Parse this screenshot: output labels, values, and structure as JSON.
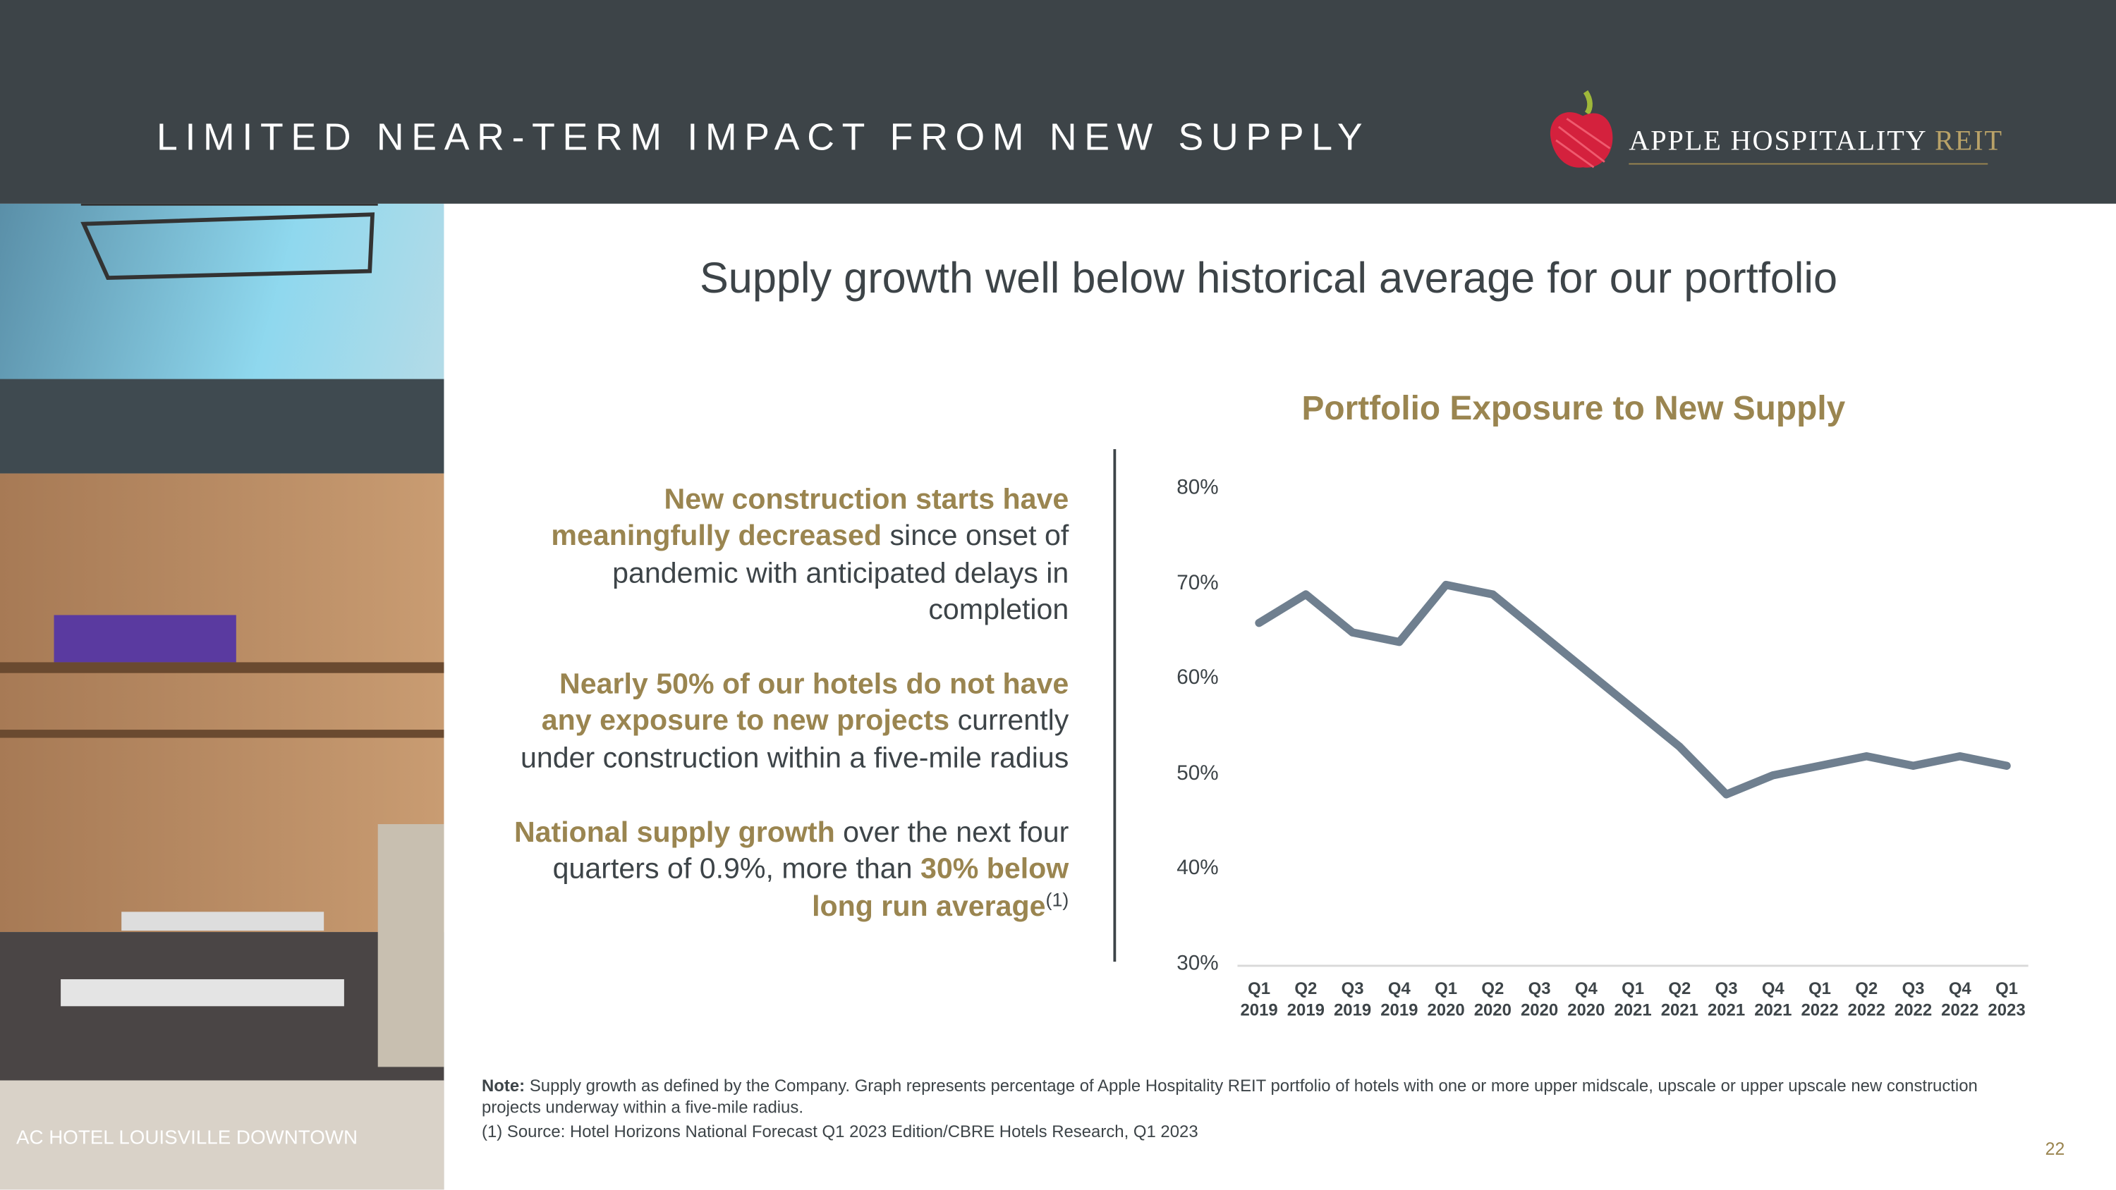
{
  "header": {
    "title": "LIMITED NEAR-TERM IMPACT FROM NEW SUPPLY",
    "logo": {
      "name": "APPLE HOSPITALITY",
      "suffix": "REIT"
    }
  },
  "photo_caption": "AC HOTEL LOUISVILLE DOWNTOWN",
  "subtitle": "Supply growth well below historical average for our portfolio",
  "bullets": [
    {
      "segments": [
        {
          "text": "New construction starts have meaningfully decreased",
          "highlight": true
        },
        {
          "text": " since onset of pandemic with anticipated delays in completion",
          "highlight": false
        }
      ]
    },
    {
      "segments": [
        {
          "text": "Nearly 50% of our hotels do not have any exposure to new projects",
          "highlight": true
        },
        {
          "text": " currently under construction within a five-mile radius",
          "highlight": false
        }
      ]
    },
    {
      "segments": [
        {
          "text": "National supply growth",
          "highlight": true
        },
        {
          "text": " over the next four quarters of 0.9%, more than ",
          "highlight": false
        },
        {
          "text": "30% below long run average",
          "highlight": true
        },
        {
          "text": "(1)",
          "highlight": false,
          "superscript": true
        }
      ]
    }
  ],
  "chart_data": {
    "type": "line",
    "title": "Portfolio Exposure to New Supply",
    "categories": [
      "Q1 2019",
      "Q2 2019",
      "Q3 2019",
      "Q4 2019",
      "Q1 2020",
      "Q2 2020",
      "Q3 2020",
      "Q4 2020",
      "Q1 2021",
      "Q2 2021",
      "Q3 2021",
      "Q4 2021",
      "Q1 2022",
      "Q2 2022",
      "Q3 2022",
      "Q4 2022",
      "Q1 2023"
    ],
    "values": [
      66,
      69,
      65,
      64,
      70,
      69,
      65,
      61,
      57,
      53,
      48,
      50,
      51,
      52,
      51,
      52,
      51
    ],
    "color": "#6f7f8f",
    "ylim": [
      30,
      80
    ],
    "yticks": [
      {
        "value": 30,
        "label": "30%"
      },
      {
        "value": 40,
        "label": "40%"
      },
      {
        "value": 50,
        "label": "50%"
      },
      {
        "value": 60,
        "label": "60%"
      },
      {
        "value": 70,
        "label": "70%"
      },
      {
        "value": 80,
        "label": "80%"
      }
    ],
    "grid": false
  },
  "notes": {
    "label": "Note:",
    "text": " Supply growth as defined by the Company. Graph represents percentage of Apple Hospitality REIT portfolio of hotels with one or more upper midscale, upscale or upper upscale new construction projects underway within a five-mile radius.",
    "source": "(1) Source: Hotel Horizons National Forecast Q1 2023 Edition/CBRE Hotels Research, Q1 2023"
  },
  "page_number": "22"
}
